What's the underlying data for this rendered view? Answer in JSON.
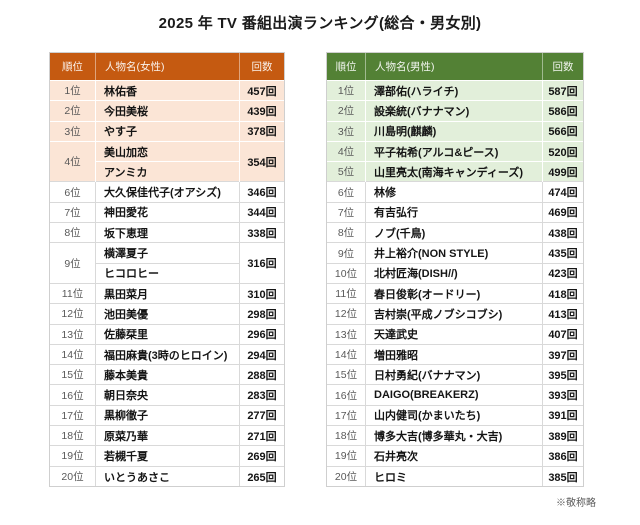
{
  "title": "2025 年 TV 番組出演ランキング(総合・男女別)",
  "footer_note": "※敬称略",
  "tables": [
    {
      "name": "women",
      "accent_color": "#C55A11",
      "highlight_color": "#FBE5D6",
      "headers": {
        "rank": "順位",
        "name": "人物名(女性)",
        "count": "回数"
      },
      "rows": [
        {
          "rank": "1位",
          "names": [
            "林佑香"
          ],
          "count": "457回",
          "highlight": true
        },
        {
          "rank": "2位",
          "names": [
            "今田美桜"
          ],
          "count": "439回",
          "highlight": true
        },
        {
          "rank": "3位",
          "names": [
            "やす子"
          ],
          "count": "378回",
          "highlight": true
        },
        {
          "rank": "4位",
          "names": [
            "美山加恋",
            "アンミカ"
          ],
          "count": "354回",
          "highlight": true
        },
        {
          "rank": "6位",
          "names": [
            "大久保佳代子(オアシズ)"
          ],
          "count": "346回",
          "highlight": false
        },
        {
          "rank": "7位",
          "names": [
            "神田愛花"
          ],
          "count": "344回",
          "highlight": false
        },
        {
          "rank": "8位",
          "names": [
            "坂下恵理"
          ],
          "count": "338回",
          "highlight": false
        },
        {
          "rank": "9位",
          "names": [
            "横澤夏子",
            "ヒコロヒー"
          ],
          "count": "316回",
          "highlight": false
        },
        {
          "rank": "11位",
          "names": [
            "黒田菜月"
          ],
          "count": "310回",
          "highlight": false
        },
        {
          "rank": "12位",
          "names": [
            "池田美優"
          ],
          "count": "298回",
          "highlight": false
        },
        {
          "rank": "13位",
          "names": [
            "佐藤栞里"
          ],
          "count": "296回",
          "highlight": false
        },
        {
          "rank": "14位",
          "names": [
            "福田麻貴(3時のヒロイン)"
          ],
          "count": "294回",
          "highlight": false
        },
        {
          "rank": "15位",
          "names": [
            "藤本美貴"
          ],
          "count": "288回",
          "highlight": false
        },
        {
          "rank": "16位",
          "names": [
            "朝日奈央"
          ],
          "count": "283回",
          "highlight": false
        },
        {
          "rank": "17位",
          "names": [
            "黒柳徹子"
          ],
          "count": "277回",
          "highlight": false
        },
        {
          "rank": "18位",
          "names": [
            "原菜乃華"
          ],
          "count": "271回",
          "highlight": false
        },
        {
          "rank": "19位",
          "names": [
            "若槻千夏"
          ],
          "count": "269回",
          "highlight": false
        },
        {
          "rank": "20位",
          "names": [
            "いとうあさこ"
          ],
          "count": "265回",
          "highlight": false
        }
      ]
    },
    {
      "name": "men",
      "accent_color": "#538135",
      "highlight_color": "#E2EFDA",
      "headers": {
        "rank": "順位",
        "name": "人物名(男性)",
        "count": "回数"
      },
      "rows": [
        {
          "rank": "1位",
          "names": [
            "澤部佑(ハライチ)"
          ],
          "count": "587回",
          "highlight": true
        },
        {
          "rank": "2位",
          "names": [
            "設楽統(バナナマン)"
          ],
          "count": "586回",
          "highlight": true
        },
        {
          "rank": "3位",
          "names": [
            "川島明(麒麟)"
          ],
          "count": "566回",
          "highlight": true
        },
        {
          "rank": "4位",
          "names": [
            "平子祐希(アルコ&ピース)"
          ],
          "count": "520回",
          "highlight": true
        },
        {
          "rank": "5位",
          "names": [
            "山里亮太(南海キャンディーズ)"
          ],
          "count": "499回",
          "highlight": true
        },
        {
          "rank": "6位",
          "names": [
            "林修"
          ],
          "count": "474回",
          "highlight": false
        },
        {
          "rank": "7位",
          "names": [
            "有吉弘行"
          ],
          "count": "469回",
          "highlight": false
        },
        {
          "rank": "8位",
          "names": [
            "ノブ(千鳥)"
          ],
          "count": "438回",
          "highlight": false
        },
        {
          "rank": "9位",
          "names": [
            "井上裕介(NON STYLE)"
          ],
          "count": "435回",
          "highlight": false
        },
        {
          "rank": "10位",
          "names": [
            "北村匠海(DISH//)"
          ],
          "count": "423回",
          "highlight": false
        },
        {
          "rank": "11位",
          "names": [
            "春日俊彰(オードリー)"
          ],
          "count": "418回",
          "highlight": false
        },
        {
          "rank": "12位",
          "names": [
            "吉村崇(平成ノブシコブシ)"
          ],
          "count": "413回",
          "highlight": false
        },
        {
          "rank": "13位",
          "names": [
            "天達武史"
          ],
          "count": "407回",
          "highlight": false
        },
        {
          "rank": "14位",
          "names": [
            "増田雅昭"
          ],
          "count": "397回",
          "highlight": false
        },
        {
          "rank": "15位",
          "names": [
            "日村勇紀(バナナマン)"
          ],
          "count": "395回",
          "highlight": false
        },
        {
          "rank": "16位",
          "names": [
            "DAIGO(BREAKERZ)"
          ],
          "count": "393回",
          "highlight": false
        },
        {
          "rank": "17位",
          "names": [
            "山内健司(かまいたち)"
          ],
          "count": "391回",
          "highlight": false
        },
        {
          "rank": "18位",
          "names": [
            "博多大吉(博多華丸・大吉)"
          ],
          "count": "389回",
          "highlight": false
        },
        {
          "rank": "19位",
          "names": [
            "石井亮次"
          ],
          "count": "386回",
          "highlight": false
        },
        {
          "rank": "20位",
          "names": [
            "ヒロミ"
          ],
          "count": "385回",
          "highlight": false
        }
      ]
    }
  ]
}
